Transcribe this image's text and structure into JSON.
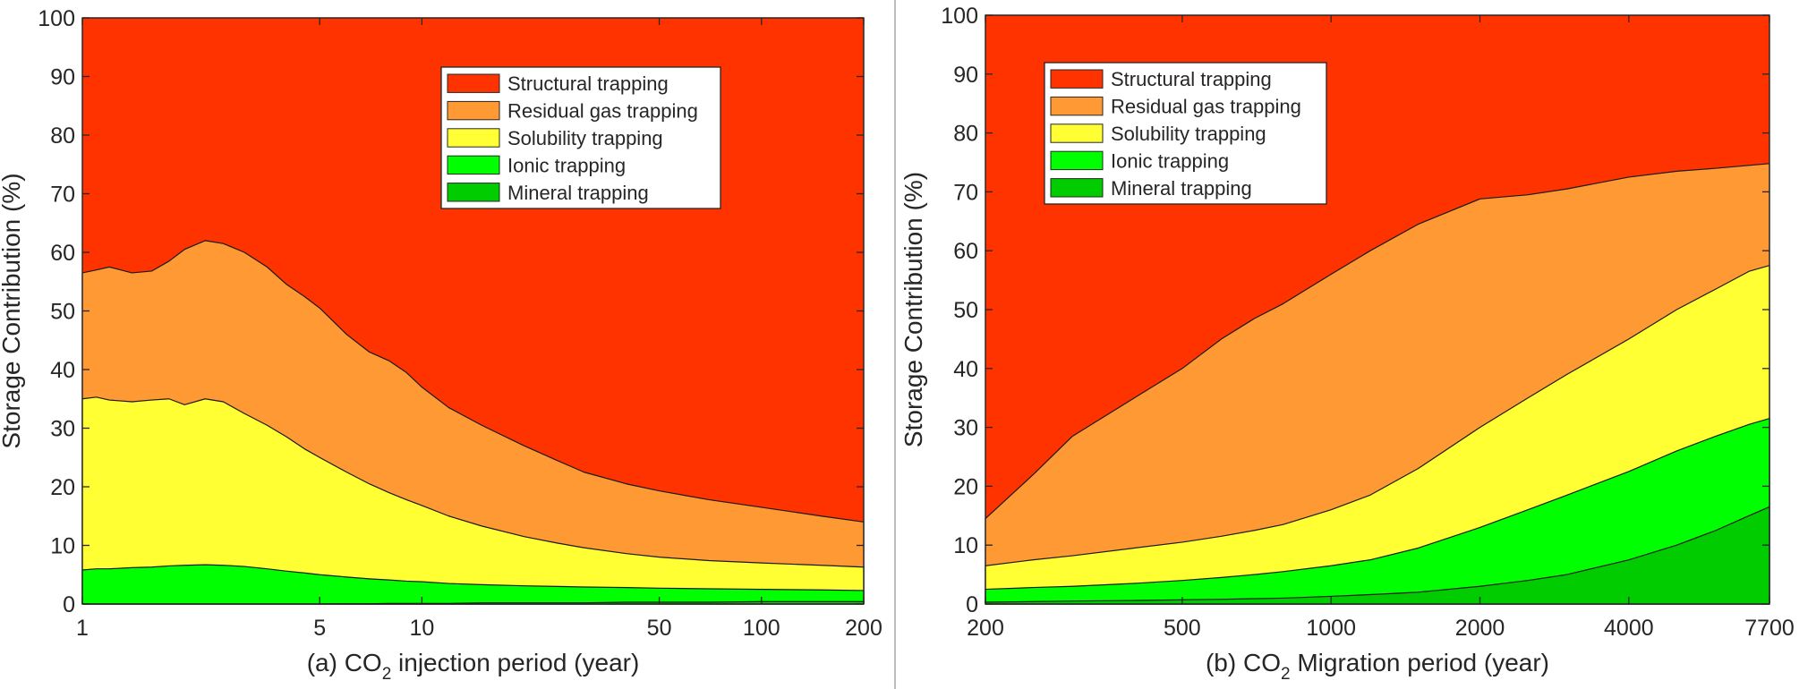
{
  "chart_data": [
    {
      "type": "area",
      "title": "",
      "xlabel_prefix": "(a) CO",
      "xlabel_sub": "2",
      "xlabel_suffix": " injection period (year)",
      "ylabel": "Storage Contribution (%)",
      "xscale": "log",
      "xlim": [
        1,
        200
      ],
      "ylim": [
        0,
        100
      ],
      "xticks": [
        1,
        5,
        10,
        50,
        100,
        200
      ],
      "xtick_labels": [
        "1",
        "5",
        "10",
        "50",
        "100",
        "200"
      ],
      "yticks": [
        0,
        10,
        20,
        30,
        40,
        50,
        60,
        70,
        80,
        90,
        100
      ],
      "ytick_labels": [
        "0",
        "10",
        "20",
        "30",
        "40",
        "50",
        "60",
        "70",
        "80",
        "90",
        "100"
      ],
      "legend_position": "top-right",
      "x": [
        1,
        1.1,
        1.2,
        1.4,
        1.6,
        1.8,
        2.0,
        2.3,
        2.6,
        3,
        3.5,
        4,
        4.5,
        5,
        6,
        7,
        8,
        9,
        10,
        12,
        15,
        20,
        25,
        30,
        40,
        50,
        70,
        100,
        150,
        200
      ],
      "cumulative_boundaries": [
        {
          "name": "Mineral trapping",
          "values": [
            0,
            0,
            0,
            0,
            0,
            0,
            0,
            0,
            0,
            0,
            0,
            0,
            0,
            0,
            0.05,
            0.05,
            0.1,
            0.1,
            0.1,
            0.1,
            0.2,
            0.2,
            0.2,
            0.2,
            0.3,
            0.3,
            0.3,
            0.4,
            0.4,
            0.4
          ]
        },
        {
          "name": "Ionic trapping",
          "values": [
            5.8,
            6.0,
            6.0,
            6.2,
            6.3,
            6.5,
            6.6,
            6.7,
            6.6,
            6.4,
            6.0,
            5.6,
            5.3,
            5.0,
            4.6,
            4.3,
            4.1,
            3.9,
            3.8,
            3.5,
            3.3,
            3.1,
            3.0,
            2.9,
            2.8,
            2.7,
            2.6,
            2.5,
            2.4,
            2.3
          ]
        },
        {
          "name": "Solubility trapping",
          "values": [
            35.0,
            35.3,
            34.8,
            34.5,
            34.8,
            35.0,
            34.0,
            35.0,
            34.5,
            32.5,
            30.5,
            28.5,
            26.5,
            25.0,
            22.5,
            20.5,
            19.0,
            17.8,
            16.8,
            15.0,
            13.3,
            11.5,
            10.4,
            9.6,
            8.6,
            8.0,
            7.4,
            7.0,
            6.6,
            6.3
          ]
        },
        {
          "name": "Residual gas trapping",
          "values": [
            56.5,
            57.0,
            57.5,
            56.5,
            56.8,
            58.5,
            60.5,
            62.0,
            61.5,
            60.0,
            57.5,
            54.5,
            52.5,
            50.5,
            46.0,
            43.0,
            41.5,
            39.5,
            37.0,
            33.5,
            30.5,
            27.0,
            24.5,
            22.5,
            20.5,
            19.3,
            17.8,
            16.5,
            15.0,
            14.0
          ]
        },
        {
          "name": "Structural trapping",
          "values": [
            100,
            100,
            100,
            100,
            100,
            100,
            100,
            100,
            100,
            100,
            100,
            100,
            100,
            100,
            100,
            100,
            100,
            100,
            100,
            100,
            100,
            100,
            100,
            100,
            100,
            100,
            100,
            100,
            100,
            100
          ]
        }
      ]
    },
    {
      "type": "area",
      "title": "",
      "xlabel_prefix": "(b) CO",
      "xlabel_sub": "2",
      "xlabel_suffix": " Migration period (year)",
      "ylabel": "Storage Contribution (%)",
      "xscale": "log",
      "xlim": [
        200,
        7700
      ],
      "ylim": [
        0,
        100
      ],
      "xticks": [
        200,
        500,
        1000,
        2000,
        4000,
        7700
      ],
      "xtick_labels": [
        "200",
        "500",
        "1000",
        "2000",
        "4000",
        "7700"
      ],
      "yticks": [
        0,
        10,
        20,
        30,
        40,
        50,
        60,
        70,
        80,
        90,
        100
      ],
      "ytick_labels": [
        "0",
        "10",
        "20",
        "30",
        "40",
        "50",
        "60",
        "70",
        "80",
        "90",
        "100"
      ],
      "legend_position": "top-left",
      "x": [
        200,
        250,
        300,
        400,
        500,
        600,
        700,
        800,
        1000,
        1200,
        1500,
        2000,
        2500,
        3000,
        4000,
        5000,
        6000,
        7000,
        7700
      ],
      "cumulative_boundaries": [
        {
          "name": "Mineral trapping",
          "values": [
            0.3,
            0.4,
            0.5,
            0.6,
            0.7,
            0.8,
            0.9,
            1.0,
            1.3,
            1.6,
            2.0,
            3.0,
            4.0,
            5.0,
            7.5,
            10.0,
            12.5,
            15.0,
            16.5
          ]
        },
        {
          "name": "Ionic trapping",
          "values": [
            2.5,
            2.8,
            3.0,
            3.5,
            4.0,
            4.5,
            5.0,
            5.5,
            6.5,
            7.5,
            9.5,
            13.0,
            16.0,
            18.5,
            22.5,
            26.0,
            28.5,
            30.5,
            31.5
          ]
        },
        {
          "name": "Solubility trapping",
          "values": [
            6.5,
            7.5,
            8.2,
            9.5,
            10.5,
            11.5,
            12.5,
            13.5,
            16.0,
            18.5,
            23.0,
            30.0,
            35.0,
            39.0,
            45.0,
            50.0,
            53.5,
            56.5,
            57.5
          ]
        },
        {
          "name": "Residual gas trapping",
          "values": [
            14.5,
            22.0,
            28.5,
            35.0,
            40.0,
            45.0,
            48.5,
            51.0,
            56.0,
            60.0,
            64.5,
            68.8,
            69.5,
            70.5,
            72.5,
            73.5,
            74.0,
            74.5,
            74.8
          ]
        },
        {
          "name": "Structural trapping",
          "values": [
            100,
            100,
            100,
            100,
            100,
            100,
            100,
            100,
            100,
            100,
            100,
            100,
            100,
            100,
            100,
            100,
            100,
            100,
            100
          ]
        }
      ]
    }
  ],
  "legend": {
    "entries": [
      "Structural trapping",
      "Residual gas trapping",
      "Solubility trapping",
      "Ionic trapping",
      "Mineral trapping"
    ],
    "colors": {
      "Structural trapping": "#ff3300",
      "Residual gas trapping": "#ff9933",
      "Solubility trapping": "#ffff33",
      "Ionic trapping": "#00ff00",
      "Mineral trapping": "#00cc00"
    }
  }
}
